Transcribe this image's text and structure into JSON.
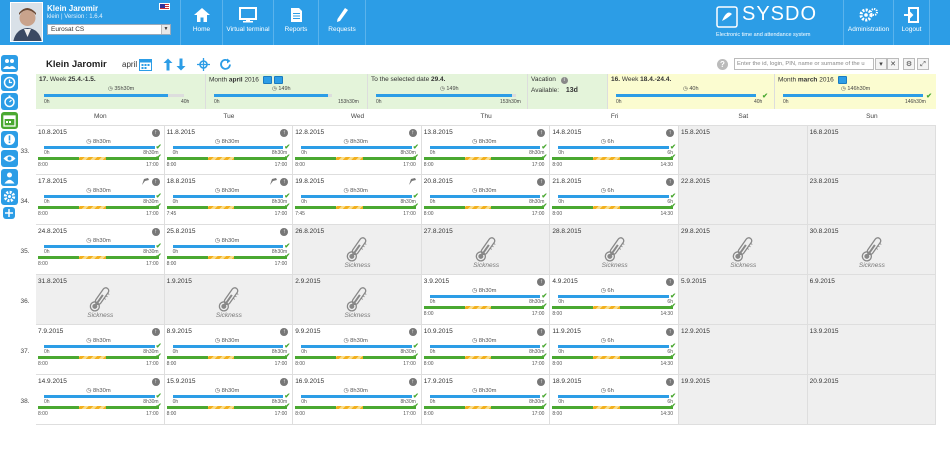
{
  "user": {
    "name": "Klein Jaromir",
    "version": "klein | Version : 1.6.4",
    "company": "Eurosat CS"
  },
  "nav": [
    {
      "label": "Home",
      "icon": "home-icon"
    },
    {
      "label": "Virtual terminal",
      "icon": "monitor-icon"
    },
    {
      "label": "Reports",
      "icon": "reports-icon"
    },
    {
      "label": "Requests",
      "icon": "pen-icon"
    }
  ],
  "brand": {
    "name": "SYSDO",
    "tagline": "Electronic time and attendance system"
  },
  "admin": {
    "administration": "Administration",
    "logout": "Logout"
  },
  "toolbar": {
    "employee": "Klein Jaromir",
    "month": "april",
    "search_placeholder": "Enter the id, login, PIN, name or surname of the u"
  },
  "summary": {
    "week": {
      "num": "17.",
      "label": "Week",
      "range": "25.4.-1.5.",
      "value": "35h30m",
      "min": "0h",
      "max": "40h",
      "fill": 0.888
    },
    "month": {
      "label": "Month",
      "name": "april",
      "year": "2016",
      "value": "149h",
      "min": "0h",
      "max": "153h30m",
      "fill": 0.97
    },
    "selected": {
      "label": "To the selected date",
      "date": "29.4.",
      "value": "149h",
      "min": "0h",
      "max": "153h30m",
      "fill": 0.97
    },
    "vacation": {
      "label": "Vacation",
      "avail_label": "Available:",
      "avail": "13d"
    },
    "prev_week": {
      "num": "16.",
      "label": "Week",
      "range": "18.4.-24.4.",
      "value": "40h",
      "min": "0h",
      "max": "40h",
      "fill": 1.0
    },
    "prev_month": {
      "label": "Month",
      "name": "march",
      "year": "2016",
      "value": "146h30m",
      "min": "0h",
      "max": "146h30m",
      "fill": 1.0
    }
  },
  "days": [
    "Mon",
    "Tue",
    "Wed",
    "Thu",
    "Fri",
    "Sat",
    "Sun"
  ],
  "sickness_label": "Sickness",
  "weeks": [
    {
      "num": "33.",
      "cells": [
        {
          "date": "10.8.2015",
          "t": "w",
          "plan": "8h30m",
          "s": "8:00",
          "e": "17:00",
          "fill": 1
        },
        {
          "date": "11.8.2015",
          "t": "w",
          "plan": "8h30m",
          "s": "8:00",
          "e": "17:00",
          "fill": 1
        },
        {
          "date": "12.8.2015",
          "t": "w",
          "plan": "8h30m",
          "s": "8:00",
          "e": "17:00",
          "fill": 1
        },
        {
          "date": "13.8.2015",
          "t": "w",
          "plan": "8h30m",
          "s": "8:00",
          "e": "17:00",
          "fill": 1
        },
        {
          "date": "14.8.2015",
          "t": "w",
          "plan": "6h",
          "s": "8:00",
          "e": "14:30",
          "fill": 1
        },
        {
          "date": "15.8.2015",
          "t": "off"
        },
        {
          "date": "16.8.2015",
          "t": "off"
        }
      ]
    },
    {
      "num": "34.",
      "cells": [
        {
          "date": "17.8.2015",
          "t": "w",
          "plan": "8h30m",
          "s": "8:00",
          "e": "17:00",
          "fill": 1,
          "doc": true
        },
        {
          "date": "18.8.2015",
          "t": "w",
          "plan": "8h30m",
          "s": "7:45",
          "e": "17:00",
          "fill": 1,
          "doc": true
        },
        {
          "date": "19.8.2015",
          "t": "w",
          "plan": "8h30m",
          "s": "7:45",
          "e": "17:00",
          "fill": 1,
          "doc": true,
          "noup": true
        },
        {
          "date": "20.8.2015",
          "t": "w",
          "plan": "8h30m",
          "s": "8:00",
          "e": "17:00",
          "fill": 1
        },
        {
          "date": "21.8.2015",
          "t": "w",
          "plan": "6h",
          "s": "8:00",
          "e": "14:30",
          "fill": 1
        },
        {
          "date": "22.8.2015",
          "t": "off"
        },
        {
          "date": "23.8.2015",
          "t": "off"
        }
      ]
    },
    {
      "num": "35.",
      "cells": [
        {
          "date": "24.8.2015",
          "t": "w",
          "plan": "8h30m",
          "s": "8:00",
          "e": "17:00",
          "fill": 1
        },
        {
          "date": "25.8.2015",
          "t": "w",
          "plan": "8h30m",
          "s": "8:00",
          "e": "17:00",
          "fill": 1
        },
        {
          "date": "26.8.2015",
          "t": "sick"
        },
        {
          "date": "27.8.2015",
          "t": "sick"
        },
        {
          "date": "28.8.2015",
          "t": "sick"
        },
        {
          "date": "29.8.2015",
          "t": "sick"
        },
        {
          "date": "30.8.2015",
          "t": "sick"
        }
      ]
    },
    {
      "num": "36.",
      "cells": [
        {
          "date": "31.8.2015",
          "t": "sick"
        },
        {
          "date": "1.9.2015",
          "t": "sick"
        },
        {
          "date": "2.9.2015",
          "t": "sick"
        },
        {
          "date": "3.9.2015",
          "t": "w",
          "plan": "8h30m",
          "s": "8:00",
          "e": "17:00",
          "fill": 1
        },
        {
          "date": "4.9.2015",
          "t": "w",
          "plan": "6h",
          "s": "8:00",
          "e": "14:30",
          "fill": 1
        },
        {
          "date": "5.9.2015",
          "t": "off"
        },
        {
          "date": "6.9.2015",
          "t": "off"
        }
      ]
    },
    {
      "num": "37.",
      "cells": [
        {
          "date": "7.9.2015",
          "t": "w",
          "plan": "8h30m",
          "s": "8:00",
          "e": "17:00",
          "fill": 1
        },
        {
          "date": "8.9.2015",
          "t": "w",
          "plan": "8h30m",
          "s": "8:00",
          "e": "17:00",
          "fill": 1
        },
        {
          "date": "9.9.2015",
          "t": "w",
          "plan": "8h30m",
          "s": "8:00",
          "e": "17:00",
          "fill": 1
        },
        {
          "date": "10.9.2015",
          "t": "w",
          "plan": "8h30m",
          "s": "8:00",
          "e": "17:00",
          "fill": 1
        },
        {
          "date": "11.9.2015",
          "t": "w",
          "plan": "6h",
          "s": "8:00",
          "e": "14:30",
          "fill": 1
        },
        {
          "date": "12.9.2015",
          "t": "off"
        },
        {
          "date": "13.9.2015",
          "t": "off"
        }
      ]
    },
    {
      "num": "38.",
      "cells": [
        {
          "date": "14.9.2015",
          "t": "w",
          "plan": "8h30m",
          "s": "8:00",
          "e": "17:00",
          "fill": 1
        },
        {
          "date": "15.9.2015",
          "t": "w",
          "plan": "8h30m",
          "s": "8:00",
          "e": "17:00",
          "fill": 1
        },
        {
          "date": "16.9.2015",
          "t": "w",
          "plan": "8h30m",
          "s": "8:00",
          "e": "17:00",
          "fill": 1
        },
        {
          "date": "17.9.2015",
          "t": "w",
          "plan": "8h30m",
          "s": "8:00",
          "e": "17:00",
          "fill": 1
        },
        {
          "date": "18.9.2015",
          "t": "w",
          "plan": "6h",
          "s": "8:00",
          "e": "14:30",
          "fill": 1
        },
        {
          "date": "19.9.2015",
          "t": "off"
        },
        {
          "date": "20.9.2015",
          "t": "off"
        }
      ]
    }
  ],
  "colors": {
    "blue": "#2c9de6",
    "green": "#4aa831",
    "yellow": "#f2b01e",
    "summary_green": "#e4f4da",
    "summary_yellow": "#fbfcd0"
  }
}
